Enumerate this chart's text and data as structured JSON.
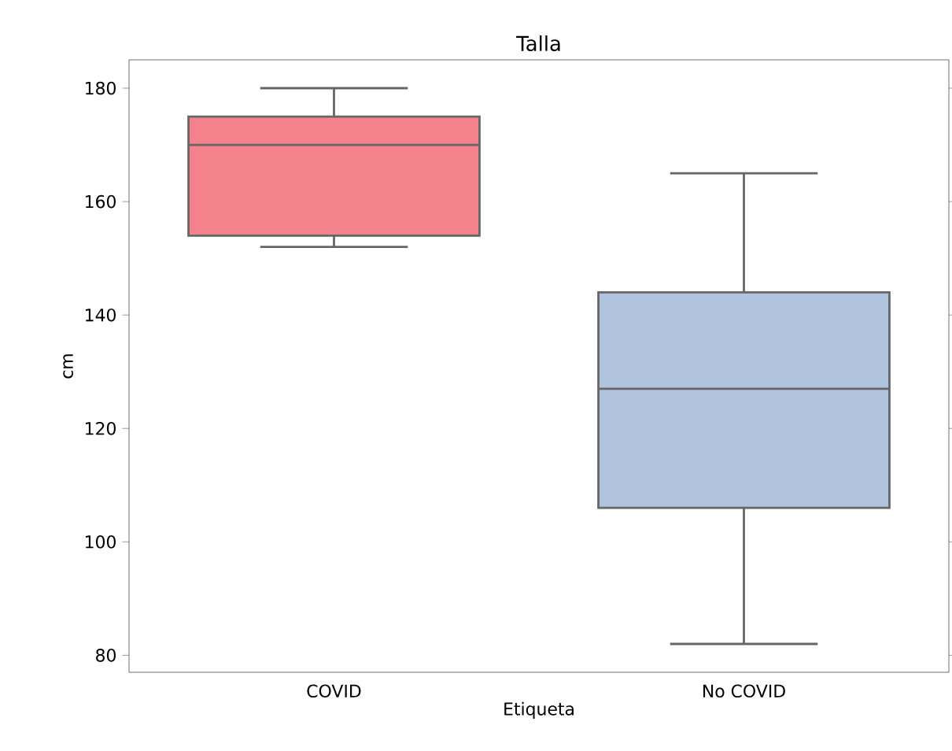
{
  "chart_data": {
    "type": "box",
    "title": "Talla",
    "xlabel": "Etiqueta",
    "ylabel": "cm",
    "categories": [
      "COVID",
      "No COVID"
    ],
    "boxes": [
      {
        "low": 152,
        "q1": 154,
        "median": 170,
        "q3": 175,
        "high": 180
      },
      {
        "low": 82,
        "q1": 106,
        "median": 127,
        "q3": 144,
        "high": 165
      }
    ],
    "colors": [
      "#f4828c",
      "#b0c4de"
    ],
    "ylim": [
      77,
      185
    ],
    "yticks": [
      80,
      100,
      120,
      140,
      160,
      180
    ],
    "grid": false
  }
}
